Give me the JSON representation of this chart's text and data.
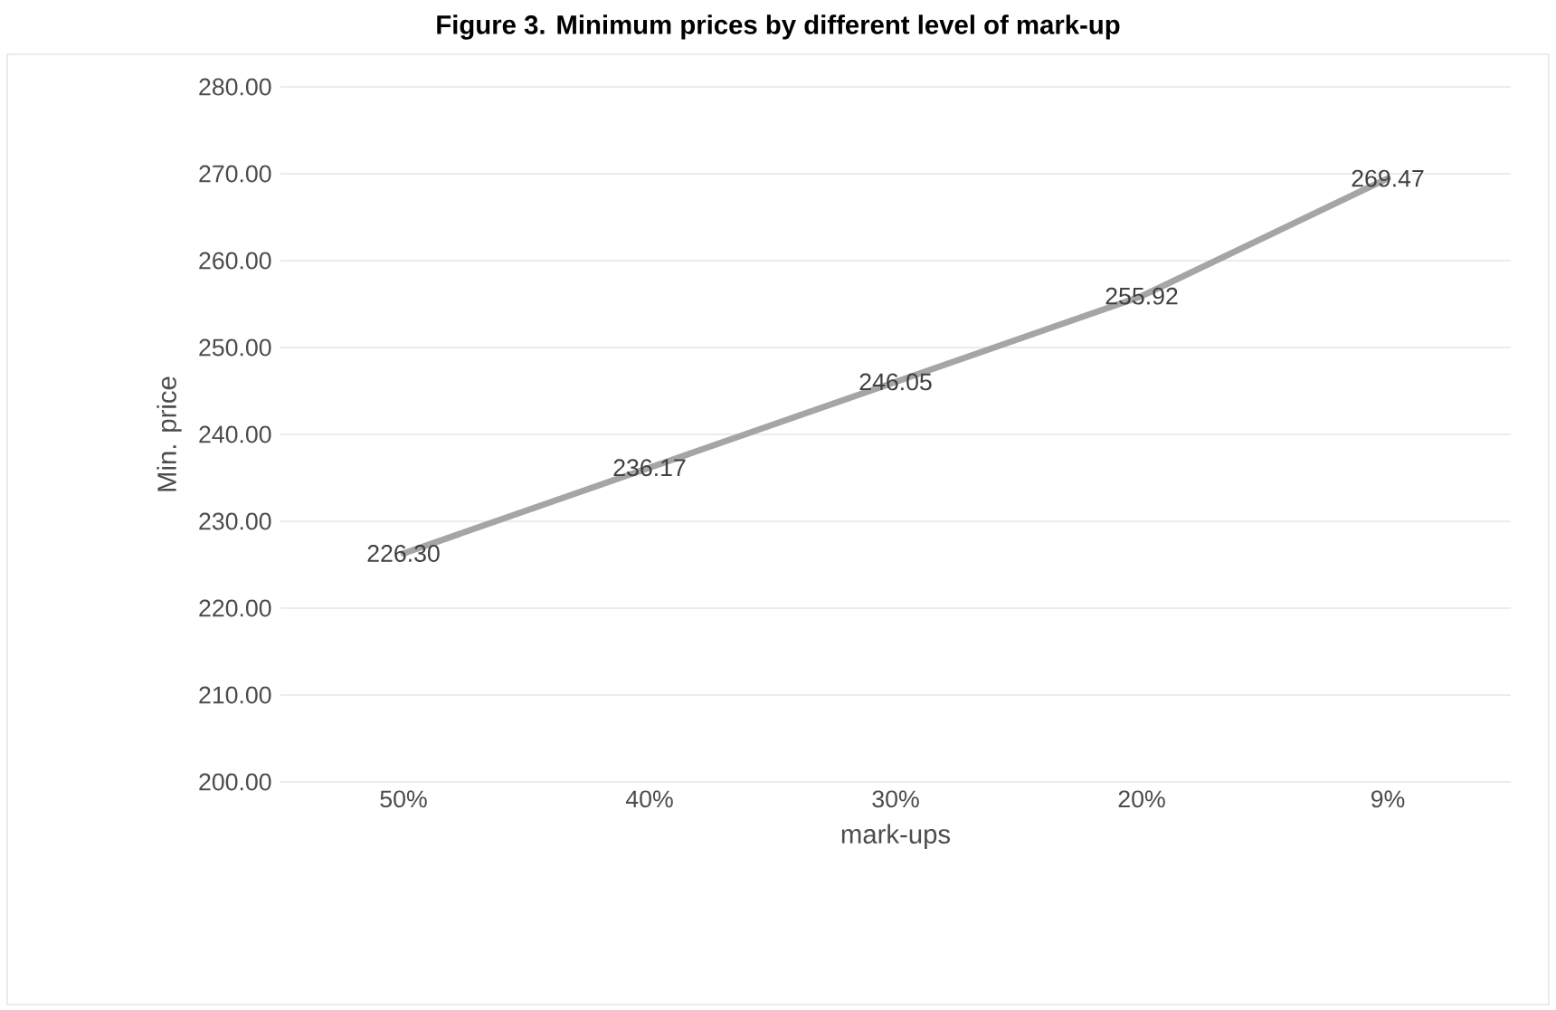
{
  "chart_data": {
    "type": "line",
    "title": "Figure 3. Minimum prices by different level of mark-up",
    "xlabel": "mark-ups",
    "ylabel": "Min. price",
    "categories": [
      "50%",
      "40%",
      "30%",
      "20%",
      "9%"
    ],
    "values": [
      226.3,
      236.17,
      246.05,
      255.92,
      269.47
    ],
    "value_labels": [
      "226.30",
      "236.17",
      "246.05",
      "255.92",
      "269.47"
    ],
    "color": "#a5a5a5",
    "marker": "none",
    "line_style": "solid",
    "grid": "y",
    "ylim": [
      200,
      280
    ],
    "yticks": [
      {
        "value": 200,
        "label": "200.00"
      },
      {
        "value": 210,
        "label": "210.00"
      },
      {
        "value": 220,
        "label": "220.00"
      },
      {
        "value": 230,
        "label": "230.00"
      },
      {
        "value": 240,
        "label": "240.00"
      },
      {
        "value": 250,
        "label": "250.00"
      },
      {
        "value": 260,
        "label": "260.00"
      },
      {
        "value": 270,
        "label": "270.00"
      },
      {
        "value": 280,
        "label": "280.00"
      }
    ]
  }
}
